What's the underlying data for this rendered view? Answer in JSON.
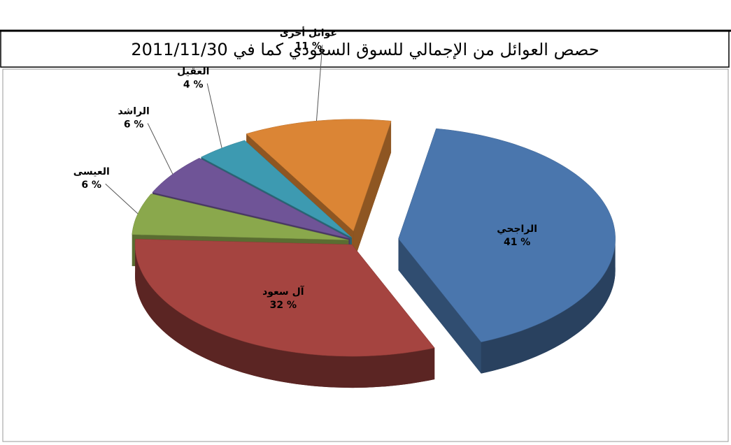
{
  "chart_data": {
    "type": "pie",
    "title": "حصص العوائل من الإجمالي للسوق السعودي كما في 2011/11/30",
    "categories": [
      "الراجحي",
      "آل سعود",
      "العيسى",
      "الراشد",
      "العقيل",
      "عوائل أخرى"
    ],
    "values": [
      41,
      32,
      6,
      6,
      4,
      11
    ],
    "value_labels": [
      "41 %",
      "32 %",
      "6 %",
      "6 %",
      "4 %",
      "11 %"
    ],
    "colors": [
      "#4a76ad",
      "#a54440",
      "#8aa84c",
      "#6f5497",
      "#3d9ab1",
      "#db8535"
    ]
  }
}
